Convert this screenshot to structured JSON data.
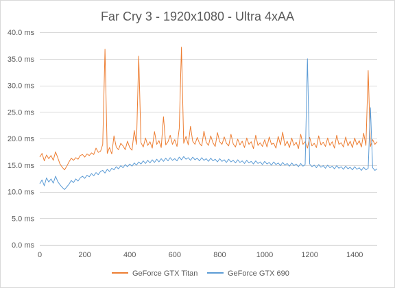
{
  "chart_data": {
    "type": "line",
    "title": "Far Cry 3 - 1920x1080 - Ultra 4xAA",
    "xlabel": "",
    "ylabel": "",
    "xlim": [
      0,
      1500
    ],
    "ylim": [
      0,
      40
    ],
    "x_ticks": [
      0,
      200,
      400,
      600,
      800,
      1000,
      1200,
      1400
    ],
    "x_tick_labels": [
      "0",
      "200",
      "400",
      "600",
      "800",
      "1000",
      "1200",
      "1400"
    ],
    "y_ticks": [
      0,
      5,
      10,
      15,
      20,
      25,
      30,
      35,
      40
    ],
    "y_tick_labels": [
      "0.0 ms",
      "5.0 ms",
      "10.0 ms",
      "15.0 ms",
      "20.0 ms",
      "25.0 ms",
      "30.0 ms",
      "35.0 ms",
      "40.0 ms"
    ],
    "grid": true,
    "legend_position": "bottom",
    "series": [
      {
        "name": "GeForce GTX Titan",
        "color": "#ed7d31",
        "values": [
          [
            0,
            16.5
          ],
          [
            10,
            17.2
          ],
          [
            20,
            15.8
          ],
          [
            30,
            16.9
          ],
          [
            40,
            16.2
          ],
          [
            50,
            16.8
          ],
          [
            60,
            15.9
          ],
          [
            70,
            17.5
          ],
          [
            80,
            16.4
          ],
          [
            90,
            15.2
          ],
          [
            100,
            14.6
          ],
          [
            110,
            14.1
          ],
          [
            120,
            14.8
          ],
          [
            130,
            15.6
          ],
          [
            140,
            16.3
          ],
          [
            150,
            15.9
          ],
          [
            160,
            16.4
          ],
          [
            170,
            16.1
          ],
          [
            180,
            16.8
          ],
          [
            190,
            17.0
          ],
          [
            200,
            16.5
          ],
          [
            210,
            17.1
          ],
          [
            220,
            16.8
          ],
          [
            230,
            17.3
          ],
          [
            240,
            17.0
          ],
          [
            250,
            18.2
          ],
          [
            260,
            17.4
          ],
          [
            270,
            17.6
          ],
          [
            280,
            18.9
          ],
          [
            290,
            36.8
          ],
          [
            300,
            17.2
          ],
          [
            310,
            18.3
          ],
          [
            320,
            17.1
          ],
          [
            330,
            20.5
          ],
          [
            340,
            18.4
          ],
          [
            350,
            17.9
          ],
          [
            360,
            19.1
          ],
          [
            370,
            18.6
          ],
          [
            380,
            17.9
          ],
          [
            390,
            19.5
          ],
          [
            400,
            18.3
          ],
          [
            410,
            17.8
          ],
          [
            420,
            21.5
          ],
          [
            430,
            18.9
          ],
          [
            440,
            35.5
          ],
          [
            450,
            19.2
          ],
          [
            460,
            18.4
          ],
          [
            470,
            20.1
          ],
          [
            480,
            18.7
          ],
          [
            490,
            19.4
          ],
          [
            500,
            18.2
          ],
          [
            510,
            21.3
          ],
          [
            520,
            18.9
          ],
          [
            530,
            19.6
          ],
          [
            540,
            18.3
          ],
          [
            550,
            24.1
          ],
          [
            560,
            18.8
          ],
          [
            570,
            19.4
          ],
          [
            580,
            20.6
          ],
          [
            590,
            18.9
          ],
          [
            600,
            19.8
          ],
          [
            610,
            18.5
          ],
          [
            620,
            21.9
          ],
          [
            630,
            37.2
          ],
          [
            640,
            19.1
          ],
          [
            650,
            20.4
          ],
          [
            660,
            18.8
          ],
          [
            670,
            22.3
          ],
          [
            680,
            19.5
          ],
          [
            690,
            18.9
          ],
          [
            700,
            20.2
          ],
          [
            710,
            19.1
          ],
          [
            720,
            18.6
          ],
          [
            730,
            21.4
          ],
          [
            740,
            19.3
          ],
          [
            750,
            18.7
          ],
          [
            760,
            20.5
          ],
          [
            770,
            19.2
          ],
          [
            780,
            18.5
          ],
          [
            790,
            21.1
          ],
          [
            800,
            19.4
          ],
          [
            810,
            18.9
          ],
          [
            820,
            20.3
          ],
          [
            830,
            19.1
          ],
          [
            840,
            18.6
          ],
          [
            850,
            20.8
          ],
          [
            860,
            19.0
          ],
          [
            870,
            18.4
          ],
          [
            880,
            19.9
          ],
          [
            890,
            18.8
          ],
          [
            900,
            19.5
          ],
          [
            910,
            18.3
          ],
          [
            920,
            20.1
          ],
          [
            930,
            18.9
          ],
          [
            940,
            19.4
          ],
          [
            950,
            18.1
          ],
          [
            960,
            20.6
          ],
          [
            970,
            18.7
          ],
          [
            980,
            19.2
          ],
          [
            990,
            18.5
          ],
          [
            1000,
            19.8
          ],
          [
            1010,
            18.4
          ],
          [
            1020,
            20.3
          ],
          [
            1030,
            18.9
          ],
          [
            1040,
            19.1
          ],
          [
            1050,
            18.2
          ],
          [
            1060,
            20.4
          ],
          [
            1070,
            18.8
          ],
          [
            1080,
            21.2
          ],
          [
            1090,
            18.6
          ],
          [
            1100,
            19.5
          ],
          [
            1110,
            18.3
          ],
          [
            1120,
            20.1
          ],
          [
            1130,
            18.7
          ],
          [
            1140,
            19.3
          ],
          [
            1150,
            18.1
          ],
          [
            1160,
            20.8
          ],
          [
            1170,
            18.9
          ],
          [
            1180,
            19.4
          ],
          [
            1190,
            18.2
          ],
          [
            1200,
            20.2
          ],
          [
            1210,
            18.6
          ],
          [
            1220,
            19.1
          ],
          [
            1230,
            18.3
          ],
          [
            1240,
            20.5
          ],
          [
            1250,
            18.8
          ],
          [
            1260,
            19.3
          ],
          [
            1270,
            18.5
          ],
          [
            1280,
            20.1
          ],
          [
            1290,
            18.7
          ],
          [
            1300,
            19.4
          ],
          [
            1310,
            18.2
          ],
          [
            1320,
            20.6
          ],
          [
            1330,
            18.9
          ],
          [
            1340,
            19.2
          ],
          [
            1350,
            18.4
          ],
          [
            1360,
            20.3
          ],
          [
            1370,
            18.6
          ],
          [
            1380,
            19.5
          ],
          [
            1390,
            18.3
          ],
          [
            1400,
            20.1
          ],
          [
            1410,
            18.8
          ],
          [
            1420,
            19.6
          ],
          [
            1430,
            18.4
          ],
          [
            1440,
            21.0
          ],
          [
            1450,
            18.7
          ],
          [
            1460,
            32.8
          ],
          [
            1470,
            18.5
          ],
          [
            1480,
            19.8
          ],
          [
            1490,
            18.9
          ],
          [
            1500,
            19.4
          ]
        ]
      },
      {
        "name": "GeForce GTX 690",
        "color": "#5b9bd5",
        "values": [
          [
            0,
            11.5
          ],
          [
            10,
            12.2
          ],
          [
            20,
            11.1
          ],
          [
            30,
            12.6
          ],
          [
            40,
            11.8
          ],
          [
            50,
            12.4
          ],
          [
            60,
            11.6
          ],
          [
            70,
            12.9
          ],
          [
            80,
            11.9
          ],
          [
            90,
            11.3
          ],
          [
            100,
            10.8
          ],
          [
            110,
            10.4
          ],
          [
            120,
            10.9
          ],
          [
            130,
            11.4
          ],
          [
            140,
            12.1
          ],
          [
            150,
            11.7
          ],
          [
            160,
            12.4
          ],
          [
            170,
            12.0
          ],
          [
            180,
            12.6
          ],
          [
            190,
            12.9
          ],
          [
            200,
            12.5
          ],
          [
            210,
            13.1
          ],
          [
            220,
            12.8
          ],
          [
            230,
            13.4
          ],
          [
            240,
            13.0
          ],
          [
            250,
            13.6
          ],
          [
            260,
            13.2
          ],
          [
            270,
            13.8
          ],
          [
            280,
            14.0
          ],
          [
            290,
            13.5
          ],
          [
            300,
            14.2
          ],
          [
            310,
            13.8
          ],
          [
            320,
            14.4
          ],
          [
            330,
            14.1
          ],
          [
            340,
            14.7
          ],
          [
            350,
            14.3
          ],
          [
            360,
            14.9
          ],
          [
            370,
            14.5
          ],
          [
            380,
            15.1
          ],
          [
            390,
            14.7
          ],
          [
            400,
            15.2
          ],
          [
            410,
            14.8
          ],
          [
            420,
            15.4
          ],
          [
            430,
            15.0
          ],
          [
            440,
            15.6
          ],
          [
            450,
            15.2
          ],
          [
            460,
            15.8
          ],
          [
            470,
            15.3
          ],
          [
            480,
            15.9
          ],
          [
            490,
            15.4
          ],
          [
            500,
            16.0
          ],
          [
            510,
            15.5
          ],
          [
            520,
            16.1
          ],
          [
            530,
            15.6
          ],
          [
            540,
            16.2
          ],
          [
            550,
            15.7
          ],
          [
            560,
            16.3
          ],
          [
            570,
            15.8
          ],
          [
            580,
            16.4
          ],
          [
            590,
            15.9
          ],
          [
            600,
            16.2
          ],
          [
            610,
            15.8
          ],
          [
            620,
            16.5
          ],
          [
            630,
            16.0
          ],
          [
            640,
            16.6
          ],
          [
            650,
            16.1
          ],
          [
            660,
            16.4
          ],
          [
            670,
            15.9
          ],
          [
            680,
            16.5
          ],
          [
            690,
            16.0
          ],
          [
            700,
            16.3
          ],
          [
            710,
            15.8
          ],
          [
            720,
            16.4
          ],
          [
            730,
            15.9
          ],
          [
            740,
            16.2
          ],
          [
            750,
            15.7
          ],
          [
            760,
            16.3
          ],
          [
            770,
            15.8
          ],
          [
            780,
            16.1
          ],
          [
            790,
            15.6
          ],
          [
            800,
            16.2
          ],
          [
            810,
            15.7
          ],
          [
            820,
            16.0
          ],
          [
            830,
            15.5
          ],
          [
            840,
            16.1
          ],
          [
            850,
            15.6
          ],
          [
            860,
            15.9
          ],
          [
            870,
            15.4
          ],
          [
            880,
            16.0
          ],
          [
            890,
            15.5
          ],
          [
            900,
            15.8
          ],
          [
            910,
            15.3
          ],
          [
            920,
            15.9
          ],
          [
            930,
            15.4
          ],
          [
            940,
            15.7
          ],
          [
            950,
            15.2
          ],
          [
            960,
            15.8
          ],
          [
            970,
            15.3
          ],
          [
            980,
            15.6
          ],
          [
            990,
            15.1
          ],
          [
            1000,
            15.7
          ],
          [
            1010,
            15.2
          ],
          [
            1020,
            15.5
          ],
          [
            1030,
            15.0
          ],
          [
            1040,
            15.6
          ],
          [
            1050,
            15.1
          ],
          [
            1060,
            15.4
          ],
          [
            1070,
            14.9
          ],
          [
            1080,
            15.5
          ],
          [
            1090,
            15.0
          ],
          [
            1100,
            15.3
          ],
          [
            1110,
            14.8
          ],
          [
            1120,
            15.4
          ],
          [
            1130,
            14.9
          ],
          [
            1140,
            15.2
          ],
          [
            1150,
            14.7
          ],
          [
            1160,
            15.3
          ],
          [
            1170,
            14.8
          ],
          [
            1180,
            15.1
          ],
          [
            1190,
            35.0
          ],
          [
            1200,
            15.2
          ],
          [
            1210,
            14.7
          ],
          [
            1220,
            15.0
          ],
          [
            1230,
            14.5
          ],
          [
            1240,
            15.1
          ],
          [
            1250,
            14.6
          ],
          [
            1260,
            14.9
          ],
          [
            1270,
            14.4
          ],
          [
            1280,
            15.0
          ],
          [
            1290,
            14.5
          ],
          [
            1300,
            14.8
          ],
          [
            1310,
            14.3
          ],
          [
            1320,
            14.9
          ],
          [
            1330,
            14.4
          ],
          [
            1340,
            14.7
          ],
          [
            1350,
            14.2
          ],
          [
            1360,
            14.8
          ],
          [
            1370,
            14.3
          ],
          [
            1380,
            14.6
          ],
          [
            1390,
            14.1
          ],
          [
            1400,
            14.7
          ],
          [
            1410,
            14.2
          ],
          [
            1420,
            14.5
          ],
          [
            1430,
            14.0
          ],
          [
            1440,
            14.6
          ],
          [
            1450,
            14.1
          ],
          [
            1460,
            14.4
          ],
          [
            1470,
            25.8
          ],
          [
            1480,
            14.5
          ],
          [
            1490,
            14.0
          ],
          [
            1500,
            14.3
          ]
        ]
      }
    ]
  }
}
